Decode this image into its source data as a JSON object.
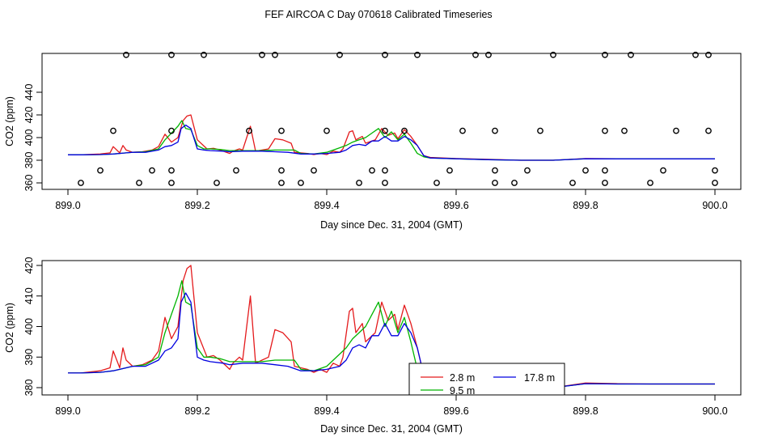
{
  "figure_title": "FEF AIRCOA C  Day 070618  Calibrated Timeseries",
  "colors": {
    "red": "#e41a1c",
    "green": "#00b400",
    "blue": "#0000e0",
    "circle": "#000000"
  },
  "chart_data": [
    {
      "type": "line",
      "panel": "top",
      "xlabel": "Day since Dec. 31, 2004 (GMT)",
      "ylabel": "CO2 (ppm)",
      "xlim": [
        899.0,
        900.0
      ],
      "ylim": [
        354,
        481
      ],
      "xticks": [
        "899.0",
        "899.2",
        "899.4",
        "899.6",
        "899.8",
        "900.0"
      ],
      "yticks": [
        "360",
        "380",
        "400",
        "420",
        "440"
      ],
      "grid": false,
      "legend": "none",
      "circle_points": {
        "name": "raw samples",
        "x": [
          899.09,
          899.16,
          899.21,
          899.3,
          899.32,
          899.42,
          899.49,
          899.54,
          899.63,
          899.65,
          899.75,
          899.83,
          899.87,
          899.97,
          899.99,
          899.07,
          899.16,
          899.28,
          899.33,
          899.4,
          899.49,
          899.52,
          899.61,
          899.66,
          899.73,
          899.83,
          899.86,
          899.94,
          899.99,
          899.05,
          899.13,
          899.16,
          899.26,
          899.33,
          899.38,
          899.47,
          899.49,
          899.59,
          899.66,
          899.71,
          899.8,
          899.83,
          899.92,
          900.0,
          899.02,
          899.11,
          899.16,
          899.23,
          899.33,
          899.36,
          899.45,
          899.49,
          899.57,
          899.66,
          899.69,
          899.78,
          899.83,
          899.9,
          900.0
        ],
        "y": [
          473,
          473,
          473,
          473,
          473,
          473,
          473,
          473,
          473,
          473,
          473,
          473,
          473,
          473,
          473,
          406,
          406,
          406,
          406,
          406,
          406,
          406,
          406,
          406,
          406,
          406,
          406,
          406,
          406,
          371,
          371,
          371,
          371,
          371,
          371,
          371,
          371,
          371,
          371,
          371,
          371,
          371,
          371,
          371,
          360,
          360,
          360,
          360,
          360,
          360,
          360,
          360,
          360,
          360,
          360,
          360,
          360,
          360,
          360
        ]
      },
      "series": [
        {
          "name": "2.8 m",
          "color": "red",
          "x": [
            899.0,
            899.02,
            899.05,
            899.065,
            899.07,
            899.08,
            899.085,
            899.09,
            899.1,
            899.115,
            899.13,
            899.14,
            899.15,
            899.16,
            899.17,
            899.178,
            899.184,
            899.19,
            899.2,
            899.215,
            899.225,
            899.235,
            899.25,
            899.255,
            899.265,
            899.27,
            899.282,
            899.29,
            899.3,
            899.31,
            899.32,
            899.332,
            899.345,
            899.35,
            899.37,
            899.38,
            899.39,
            899.4,
            899.41,
            899.42,
            899.425,
            899.435,
            899.44,
            899.445,
            899.455,
            899.46,
            899.475,
            899.485,
            899.495,
            899.505,
            899.51,
            899.52,
            899.53,
            899.54,
            899.55,
            899.56,
            899.6,
            899.65,
            899.7,
            899.75,
            899.8,
            899.85,
            899.9,
            899.95,
            900.0
          ],
          "y": [
            384.8,
            384.8,
            385.5,
            386.5,
            392,
            386.5,
            393,
            389,
            387,
            387.5,
            389,
            392,
            403,
            396,
            400,
            415,
            419,
            420,
            398,
            390,
            390.5,
            389,
            386,
            388,
            390,
            389,
            410,
            388,
            389,
            390,
            399,
            398,
            395,
            387,
            386,
            385,
            386,
            385,
            388,
            387,
            390,
            405,
            406,
            398,
            401,
            395,
            398,
            408,
            402,
            404,
            399,
            407,
            401,
            393,
            384,
            382.5,
            381.5,
            380.8,
            380,
            380,
            381.5,
            381.3,
            381.2,
            381.2,
            381.2
          ]
        },
        {
          "name": "9.5 m",
          "color": "green",
          "x": [
            899.0,
            899.02,
            899.05,
            899.07,
            899.09,
            899.1,
            899.12,
            899.14,
            899.15,
            899.16,
            899.17,
            899.176,
            899.182,
            899.19,
            899.2,
            899.21,
            899.22,
            899.235,
            899.25,
            899.27,
            899.285,
            899.3,
            899.32,
            899.33,
            899.35,
            899.36,
            899.38,
            899.4,
            899.42,
            899.43,
            899.44,
            899.45,
            899.46,
            899.47,
            899.48,
            899.49,
            899.5,
            899.51,
            899.52,
            899.53,
            899.54,
            899.55,
            899.56,
            899.6,
            899.65,
            899.7,
            899.75,
            899.8,
            899.85,
            899.9,
            899.95,
            900.0
          ],
          "y": [
            384.8,
            384.8,
            385,
            385.5,
            386.5,
            387,
            387.5,
            390,
            398,
            404,
            410,
            415,
            408,
            407,
            393,
            390,
            390,
            389.5,
            388.5,
            388.5,
            388.5,
            388.5,
            389,
            389,
            389,
            386,
            385.5,
            387,
            391,
            393,
            396,
            398,
            400,
            404,
            408,
            400,
            405,
            398,
            403,
            395,
            386,
            383,
            382,
            381.3,
            380.5,
            380,
            380,
            381.3,
            381.2,
            381.2,
            381.2,
            381.2
          ]
        },
        {
          "name": "17.8 m",
          "color": "blue",
          "x": [
            899.0,
            899.02,
            899.05,
            899.07,
            899.09,
            899.1,
            899.12,
            899.14,
            899.15,
            899.16,
            899.17,
            899.175,
            899.182,
            899.19,
            899.2,
            899.21,
            899.22,
            899.24,
            899.25,
            899.27,
            899.285,
            899.3,
            899.32,
            899.34,
            899.36,
            899.38,
            899.4,
            899.42,
            899.43,
            899.44,
            899.45,
            899.46,
            899.47,
            899.48,
            899.49,
            899.5,
            899.51,
            899.52,
            899.53,
            899.54,
            899.55,
            899.56,
            899.6,
            899.65,
            899.7,
            899.75,
            899.8,
            899.85,
            899.9,
            899.95,
            900.0
          ],
          "y": [
            384.8,
            384.8,
            385,
            385.5,
            386.5,
            387,
            387,
            389,
            392,
            393,
            396,
            408,
            411,
            408,
            390,
            389,
            388.5,
            388,
            387.5,
            388,
            388,
            388,
            387.5,
            387,
            385.5,
            385.5,
            386,
            387,
            389,
            393,
            394,
            393,
            397,
            397,
            401,
            397,
            397,
            401,
            398,
            393,
            384,
            382,
            381.3,
            380.5,
            380,
            380,
            381.3,
            381.2,
            381.2,
            381.2,
            381.2
          ]
        }
      ]
    },
    {
      "type": "line",
      "panel": "bottom",
      "xlabel": "Day since Dec. 31, 2004 (GMT)",
      "ylabel": "CO2 (ppm)",
      "xlim": [
        899.0,
        900.0
      ],
      "ylim": [
        379,
        421
      ],
      "xticks": [
        "899.0",
        "899.2",
        "899.4",
        "899.6",
        "899.8",
        "900.0"
      ],
      "yticks": [
        "380",
        "390",
        "400",
        "410",
        "420"
      ],
      "grid": false,
      "legend": "bottom-center",
      "legend_entries": [
        "2.8 m",
        "9.5 m",
        "17.8 m"
      ]
    }
  ]
}
